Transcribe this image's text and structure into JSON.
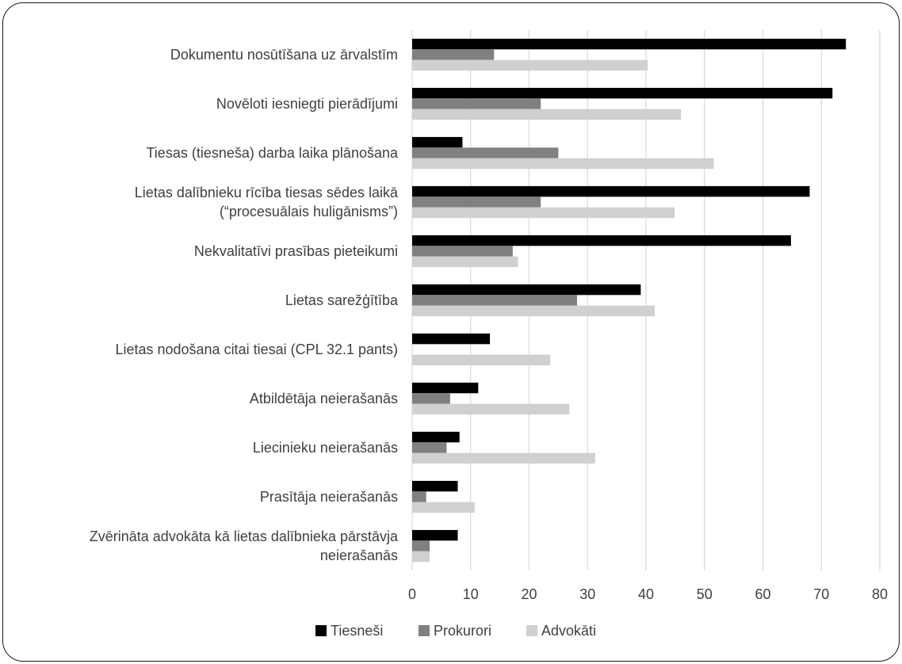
{
  "chart_data": {
    "type": "bar",
    "orientation": "horizontal",
    "categories": [
      [
        "Dokumentu nosūtīšana uz ārvalstīm"
      ],
      [
        "Novēloti iesniegti pierādījumi"
      ],
      [
        "Tiesas (tiesneša) darba laika plānošana"
      ],
      [
        "Lietas dalībnieku rīcība tiesas sēdes laikā",
        "(“procesuālais huligānisms”)"
      ],
      [
        "Nekvalitatīvi prasības pieteikumi"
      ],
      [
        "Lietas sarežģītība"
      ],
      [
        "Lietas nodošana citai tiesai (CPL 32.1 pants)"
      ],
      [
        "Atbildētāja neierašanās"
      ],
      [
        "Liecinieku neierašanās"
      ],
      [
        "Prasītāja neierašanās"
      ],
      [
        "Zvērināta advokāta kā lietas dalībnieka pārstāvja",
        "neierašanās"
      ]
    ],
    "series": [
      {
        "name": "Tiesneši",
        "color": "#000000",
        "values": [
          74.2,
          71.9,
          8.6,
          68.0,
          64.8,
          39.1,
          13.3,
          11.3,
          8.1,
          7.8,
          7.8
        ]
      },
      {
        "name": "Prokurori",
        "color": "#808080",
        "values": [
          14.0,
          22.0,
          25.0,
          22.0,
          17.2,
          28.2,
          0,
          6.5,
          5.9,
          2.4,
          3.0
        ]
      },
      {
        "name": "Advokāti",
        "color": "#d0d0d0",
        "values": [
          40.3,
          46.0,
          51.6,
          44.9,
          18.1,
          41.5,
          23.6,
          26.9,
          31.3,
          10.7,
          3.0
        ]
      }
    ],
    "xlim": [
      0,
      80
    ],
    "xticks": [
      "0",
      "10",
      "20",
      "30",
      "40",
      "50",
      "60",
      "70",
      "80"
    ],
    "grid": "vertical",
    "legend_position": "bottom"
  }
}
